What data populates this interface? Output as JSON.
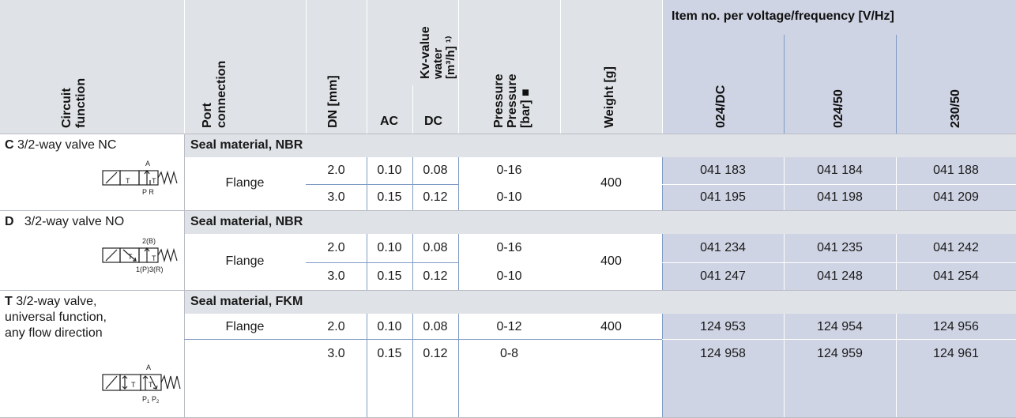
{
  "header": {
    "circuit_function": [
      "Circuit",
      "function"
    ],
    "port_connection": [
      "Port",
      "connection"
    ],
    "dn": "DN [mm]",
    "kv": [
      "Kv-value",
      "water",
      "[m³/h] ¹⁾"
    ],
    "kv_ac": "AC",
    "kv_dc": "DC",
    "pressure": [
      "Pressure",
      "Pressure",
      "[bar] ■"
    ],
    "weight": "Weight [g]",
    "item_no": "Item no. per voltage/frequency [V/Hz]",
    "voltages": [
      "024/DC",
      "024/50",
      "230/50"
    ]
  },
  "sections": [
    {
      "letter": "C",
      "function": "3/2-way valve NC",
      "seal": "Seal material, NBR",
      "port": "Flange",
      "weight": "400",
      "symbol_labels": {
        "top": "A",
        "bottom": "P R"
      },
      "rows": [
        {
          "dn": "2.0",
          "ac": "0.10",
          "dc": "0.08",
          "pressure": "0-16",
          "items": [
            "041 183",
            "041 184",
            "041 188"
          ]
        },
        {
          "dn": "3.0",
          "ac": "0.15",
          "dc": "0.12",
          "pressure": "0-10",
          "items": [
            "041 195",
            "041 198",
            "041 209"
          ]
        }
      ]
    },
    {
      "letter": "D",
      "function": "3/2-way valve NO",
      "seal": "Seal material, NBR",
      "port": "Flange",
      "weight": "400",
      "symbol_labels": {
        "top": "2(B)",
        "bottom": "1(P)3(R)"
      },
      "rows": [
        {
          "dn": "2.0",
          "ac": "0.10",
          "dc": "0.08",
          "pressure": "0-16",
          "items": [
            "041 234",
            "041 235",
            "041 242"
          ]
        },
        {
          "dn": "3.0",
          "ac": "0.15",
          "dc": "0.12",
          "pressure": "0-10",
          "items": [
            "041 247",
            "041 248",
            "041 254"
          ]
        }
      ]
    },
    {
      "letter": "T",
      "function_lines": [
        "3/2-way valve,",
        "universal function,",
        "any flow direction"
      ],
      "seal": "Seal material, FKM",
      "port": "Flange",
      "weight": "400",
      "symbol_labels": {
        "top": "A",
        "bottom1": "P",
        "bottom1_sub": "1",
        "bottom2": "P",
        "bottom2_sub": "2"
      },
      "rows": [
        {
          "dn": "2.0",
          "ac": "0.10",
          "dc": "0.08",
          "pressure": "0-12",
          "items": [
            "124 953",
            "124 954",
            "124 956"
          ]
        },
        {
          "dn": "3.0",
          "ac": "0.15",
          "dc": "0.12",
          "pressure": "0-8",
          "items": [
            "124 958",
            "124 959",
            "124 961"
          ]
        }
      ]
    }
  ]
}
